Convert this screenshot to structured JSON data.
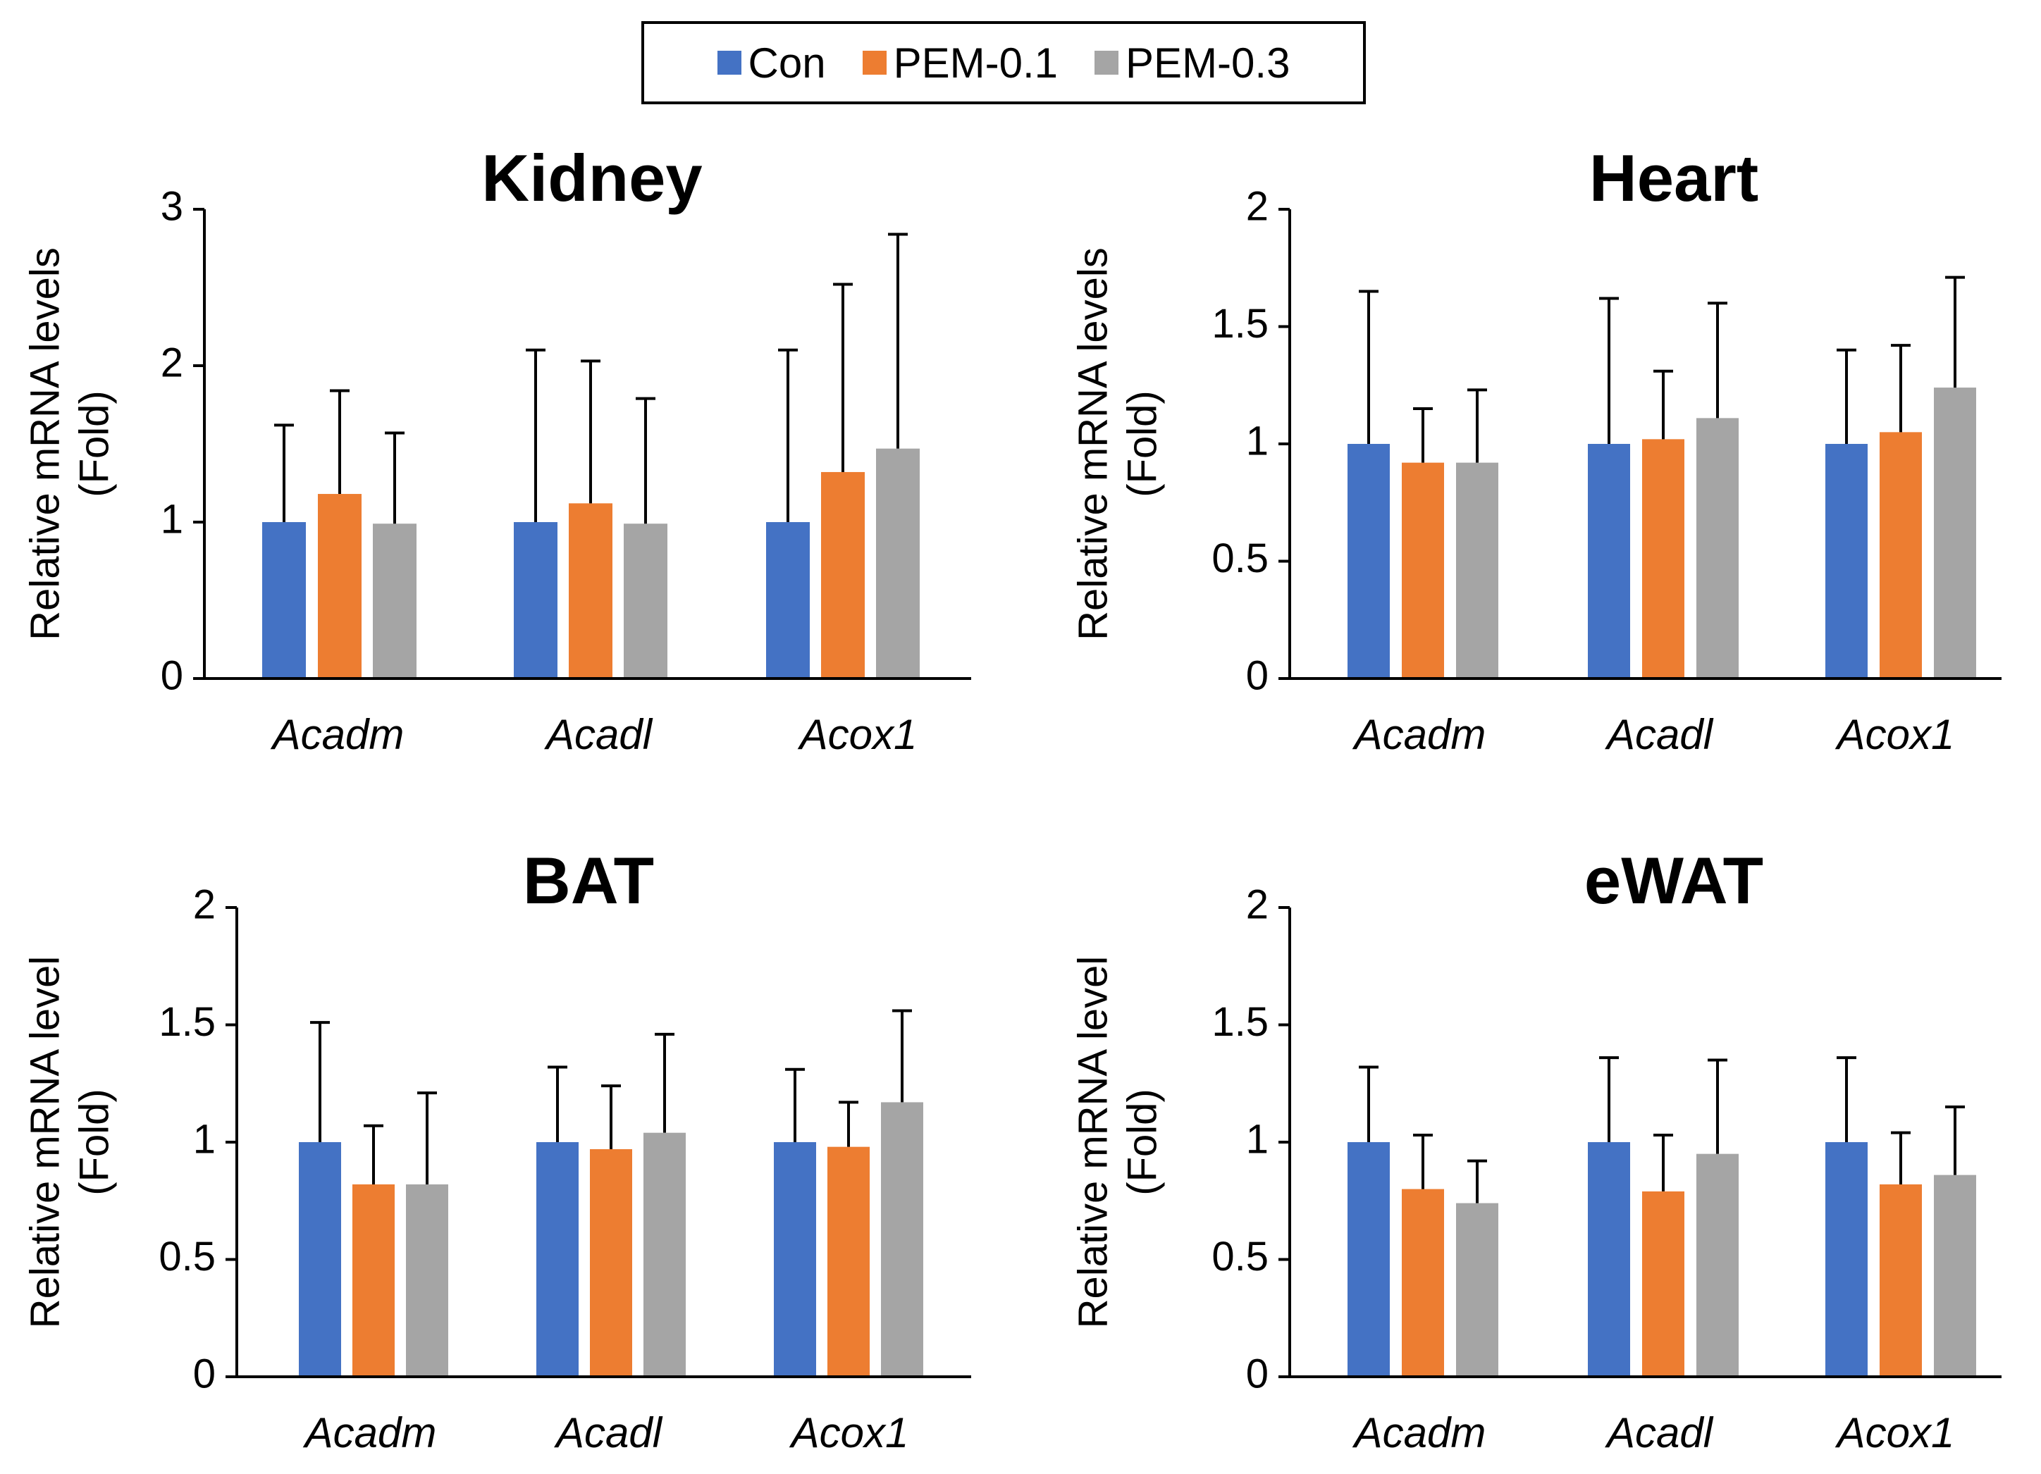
{
  "legend": {
    "items": [
      {
        "label": "Con",
        "color": "#4472C4"
      },
      {
        "label": "PEM-0.1",
        "color": "#ED7D31"
      },
      {
        "label": "PEM-0.3",
        "color": "#A5A5A5"
      }
    ]
  },
  "chart_data": [
    {
      "type": "bar",
      "title": "Kidney",
      "ylabel_lines": [
        "Relative mRNA levels",
        "(Fold)"
      ],
      "categories": [
        "Acadm",
        "Acadl",
        "Acox1"
      ],
      "ylim": [
        0,
        3
      ],
      "yticks": [
        0,
        1,
        2,
        3
      ],
      "ytick_labels": [
        "0",
        "1",
        "2",
        "3"
      ],
      "series": [
        {
          "name": "Con",
          "values": [
            1.0,
            1.0,
            1.0
          ],
          "errors": [
            0.62,
            1.1,
            1.1
          ]
        },
        {
          "name": "PEM-0.1",
          "values": [
            1.18,
            1.12,
            1.32
          ],
          "errors": [
            0.66,
            0.91,
            1.2
          ]
        },
        {
          "name": "PEM-0.3",
          "values": [
            0.99,
            0.99,
            1.47
          ],
          "errors": [
            0.58,
            0.8,
            1.37
          ]
        }
      ]
    },
    {
      "type": "bar",
      "title": "Heart",
      "ylabel_lines": [
        "Relative mRNA levels",
        "(Fold)"
      ],
      "categories": [
        "Acadm",
        "Acadl",
        "Acox1"
      ],
      "ylim": [
        0,
        2
      ],
      "yticks": [
        0,
        0.5,
        1,
        1.5,
        2
      ],
      "ytick_labels": [
        "0",
        "0.5",
        "1",
        "1.5",
        "2"
      ],
      "series": [
        {
          "name": "Con",
          "values": [
            1.0,
            1.0,
            1.0
          ],
          "errors": [
            0.65,
            0.62,
            0.4
          ]
        },
        {
          "name": "PEM-0.1",
          "values": [
            0.92,
            1.02,
            1.05
          ],
          "errors": [
            0.23,
            0.29,
            0.37
          ]
        },
        {
          "name": "PEM-0.3",
          "values": [
            0.92,
            1.11,
            1.24
          ],
          "errors": [
            0.31,
            0.49,
            0.47
          ]
        }
      ]
    },
    {
      "type": "bar",
      "title": "BAT",
      "ylabel_lines": [
        "Relative mRNA level",
        "(Fold)"
      ],
      "categories": [
        "Acadm",
        "Acadl",
        "Acox1"
      ],
      "ylim": [
        0,
        2
      ],
      "yticks": [
        0,
        0.5,
        1,
        1.5,
        2
      ],
      "ytick_labels": [
        "0",
        "0.5",
        "1",
        "1.5",
        "2"
      ],
      "series": [
        {
          "name": "Con",
          "values": [
            1.0,
            1.0,
            1.0
          ],
          "errors": [
            0.51,
            0.32,
            0.31
          ]
        },
        {
          "name": "PEM-0.1",
          "values": [
            0.82,
            0.97,
            0.98
          ],
          "errors": [
            0.25,
            0.27,
            0.19
          ]
        },
        {
          "name": "PEM-0.3",
          "values": [
            0.82,
            1.04,
            1.17
          ],
          "errors": [
            0.39,
            0.42,
            0.39
          ]
        }
      ]
    },
    {
      "type": "bar",
      "title": "eWAT",
      "ylabel_lines": [
        "Relative mRNA level",
        "(Fold)"
      ],
      "categories": [
        "Acadm",
        "Acadl",
        "Acox1"
      ],
      "ylim": [
        0,
        2
      ],
      "yticks": [
        0,
        0.5,
        1,
        1.5,
        2
      ],
      "ytick_labels": [
        "0",
        "0.5",
        "1",
        "1.5",
        "2"
      ],
      "series": [
        {
          "name": "Con",
          "values": [
            1.0,
            1.0,
            1.0
          ],
          "errors": [
            0.32,
            0.36,
            0.36
          ]
        },
        {
          "name": "PEM-0.1",
          "values": [
            0.8,
            0.79,
            0.82
          ],
          "errors": [
            0.23,
            0.24,
            0.22
          ]
        },
        {
          "name": "PEM-0.3",
          "values": [
            0.74,
            0.95,
            0.86
          ],
          "errors": [
            0.18,
            0.4,
            0.29
          ]
        }
      ]
    }
  ]
}
